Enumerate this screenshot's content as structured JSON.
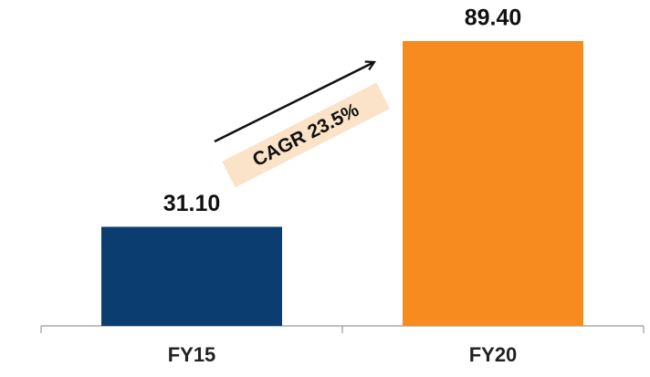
{
  "chart_data": {
    "type": "bar",
    "categories": [
      "FY15",
      "FY20"
    ],
    "values": [
      31.1,
      89.4
    ],
    "value_labels": [
      "31.10",
      "89.40"
    ],
    "colors": [
      "#0b3d70",
      "#f78b1f"
    ],
    "ylim": [
      0,
      100
    ],
    "annotation": "CAGR 23.5%"
  }
}
